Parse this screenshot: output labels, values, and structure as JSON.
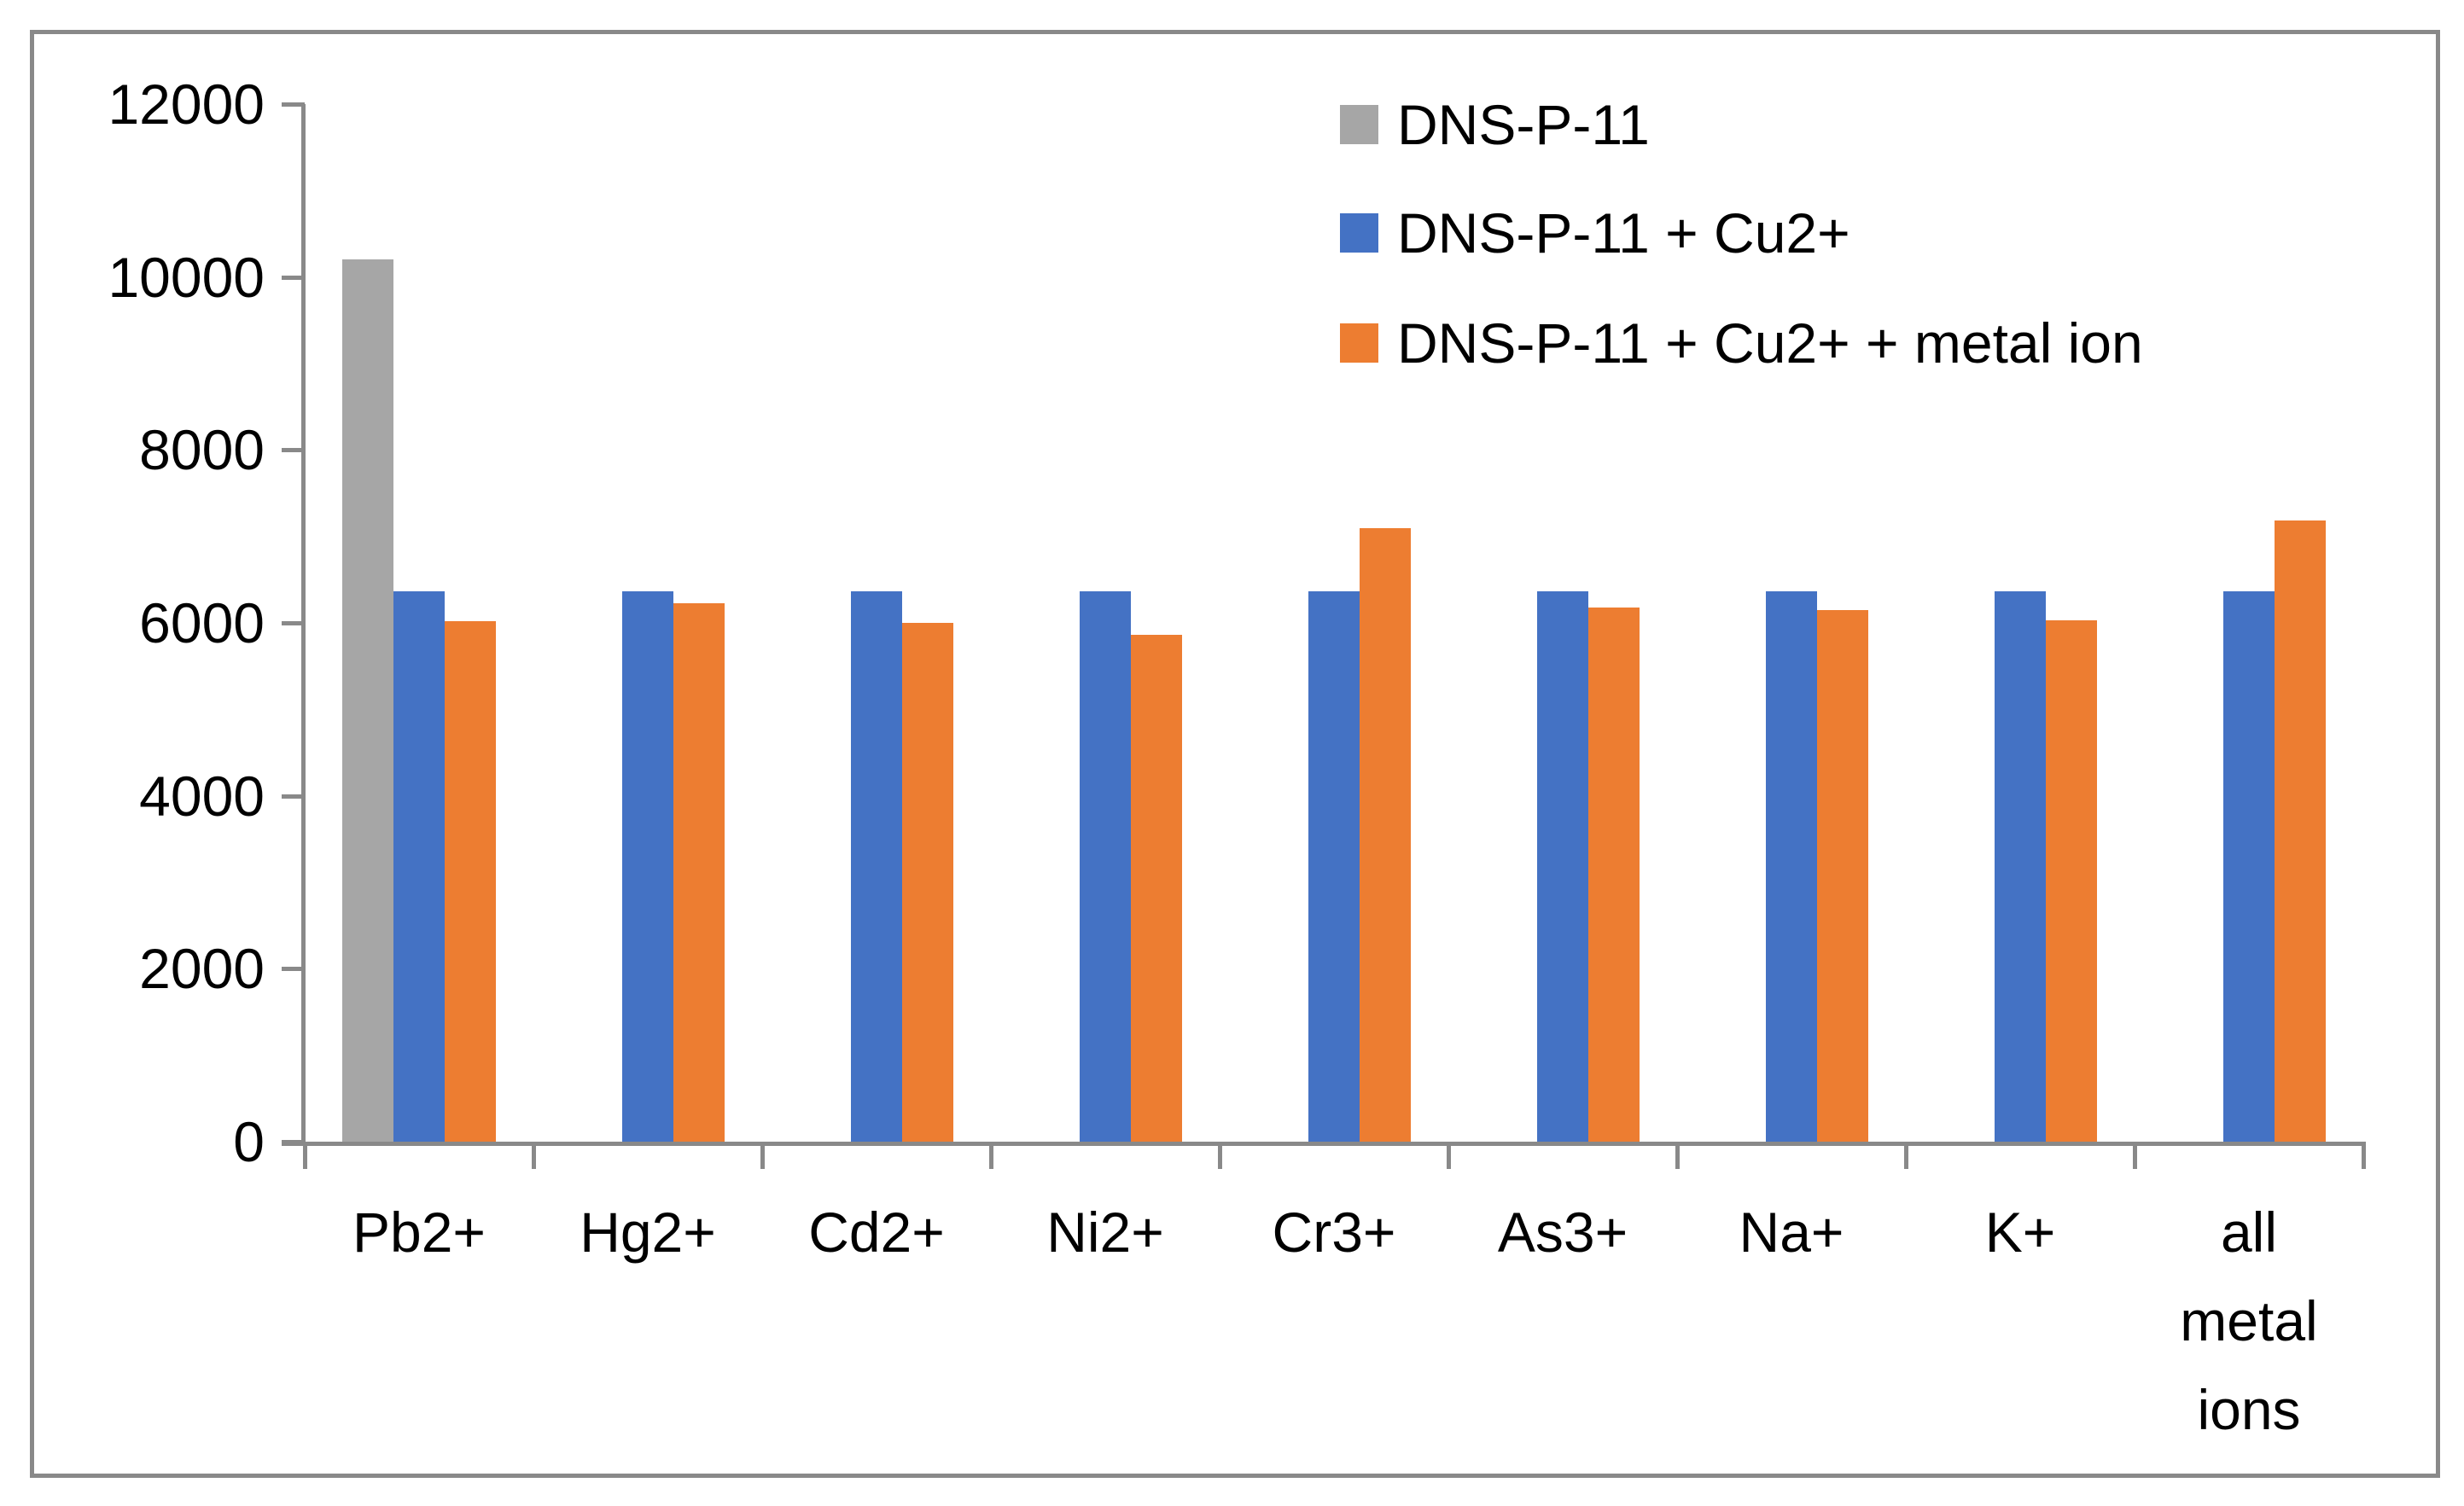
{
  "figure": {
    "background": "#FFFFFF",
    "border_color": "#898989",
    "axis_color": "#898989",
    "text_color": "#000000"
  },
  "chart_data": {
    "type": "bar",
    "title": "",
    "xlabel": "",
    "ylabel": "",
    "categories": [
      "Pb2+",
      "Hg2+",
      "Cd2+",
      "Ni2+",
      "Cr3+",
      "As3+",
      "Na+",
      "K+",
      "all metal ions"
    ],
    "series": [
      {
        "name": "DNS-P-11",
        "color": "#A6A6A6",
        "values": [
          10200,
          null,
          null,
          null,
          null,
          null,
          null,
          null,
          null
        ]
      },
      {
        "name": "DNS-P-11 + Cu2+",
        "color": "#4472C4",
        "values": [
          6370,
          6370,
          6370,
          6370,
          6370,
          6370,
          6370,
          6370,
          6370
        ]
      },
      {
        "name": "DNS-P-11 + Cu2+ + metal ion",
        "color": "#ED7D31",
        "values": [
          6020,
          6230,
          6000,
          5860,
          7100,
          6180,
          6150,
          6030,
          7180
        ]
      }
    ],
    "ylim": [
      0,
      12000
    ],
    "yticks": [
      0,
      2000,
      4000,
      6000,
      8000,
      10000,
      12000
    ],
    "ytick_interval": 2000,
    "grid": false,
    "legend_position": "top-right-inside"
  }
}
